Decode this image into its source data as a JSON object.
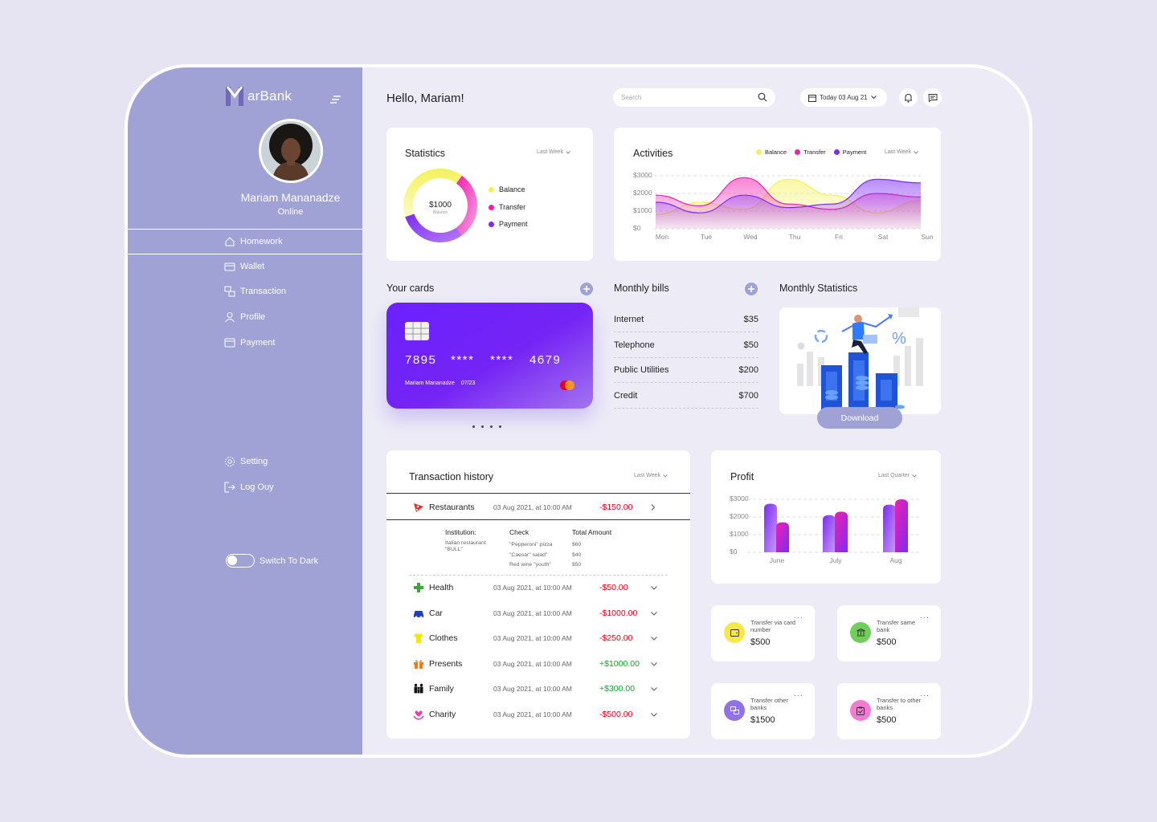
{
  "app": {
    "name": "arBank",
    "greeting": "Hello, Mariam!"
  },
  "user": {
    "name": "Mariam Mananadze",
    "status": "Online"
  },
  "nav": [
    {
      "label": "Homework",
      "icon": "home-icon"
    },
    {
      "label": "Wallet",
      "icon": "wallet-icon"
    },
    {
      "label": "Transaction",
      "icon": "transaction-icon"
    },
    {
      "label": "Profile",
      "icon": "profile-icon"
    },
    {
      "label": "Payment",
      "icon": "payment-icon"
    }
  ],
  "nav_bottom": [
    {
      "label": "Setting",
      "icon": "gear-icon"
    },
    {
      "label": "Log Ouy",
      "icon": "logout-icon"
    }
  ],
  "dark_toggle": {
    "label": "Switch To Dark",
    "on": false
  },
  "header": {
    "search_placeholder": "Search",
    "date_label": "Today 03 Aug 21"
  },
  "statistics": {
    "title": "Statistics",
    "period": "Last Week",
    "center_value": "$1000",
    "center_label": "Balance",
    "legend": [
      "Balance",
      "Transfer",
      "Payment"
    ]
  },
  "activities": {
    "title": "Activities",
    "period": "Last Week",
    "legend": [
      "Balance",
      "Transfer",
      "Payment"
    ]
  },
  "cards": {
    "title": "Your cards",
    "number": [
      "7895",
      "****",
      "****",
      "4679"
    ],
    "holder": "Mariam Mananadze",
    "expiry": "07/23"
  },
  "bills": {
    "title": "Monthly bills",
    "items": [
      {
        "name": "Internet",
        "amount": "$35"
      },
      {
        "name": "Telephone",
        "amount": "$50"
      },
      {
        "name": "Public Utilities",
        "amount": "$200"
      },
      {
        "name": "Credit",
        "amount": "$700"
      }
    ]
  },
  "monthly_stats": {
    "title": "Monthly Statistics",
    "download_label": "Download"
  },
  "history": {
    "title": "Transaction history",
    "period": "Last Week",
    "expanded": {
      "category": "Restaurants",
      "date": "03 Aug 2021, at 10:00 AM",
      "amount": "-$150.00",
      "col1": "Institution:",
      "col2": "Check",
      "col3": "Total Amount",
      "institution": "Italian restaurant \"BULL\"",
      "checks": [
        "\"Pepperoni\" pizza",
        "\"Caesar\" salad\"",
        "Red wine \"youth\""
      ],
      "totals": [
        "$60",
        "$40",
        "$50"
      ]
    },
    "rows": [
      {
        "category": "Health",
        "date": "03 Aug 2021, at 10:00 AM",
        "amount": "-$50.00",
        "sign": "neg",
        "icon": "health-cross-icon"
      },
      {
        "category": "Car",
        "date": "03 Aug 2021, at 10:00 AM",
        "amount": "-$1000.00",
        "sign": "neg",
        "icon": "car-icon"
      },
      {
        "category": "Clothes",
        "date": "03 Aug 2021, at 10:00 AM",
        "amount": "-$250.00",
        "sign": "neg",
        "icon": "shirt-icon"
      },
      {
        "category": "Presents",
        "date": "03 Aug 2021, at 10:00 AM",
        "amount": "+$1000.00",
        "sign": "pos",
        "icon": "gift-icon"
      },
      {
        "category": "Family",
        "date": "03 Aug 2021, at 10:00 AM",
        "amount": "+$300.00",
        "sign": "pos",
        "icon": "family-icon"
      },
      {
        "category": "Charity",
        "date": "03 Aug 2021, at 10:00 AM",
        "amount": "-$500.00",
        "sign": "neg",
        "icon": "charity-icon"
      }
    ]
  },
  "profit": {
    "title": "Profit",
    "period": "Last Quarter"
  },
  "transfers": [
    {
      "label": "Transfer via card number",
      "amount": "$500",
      "color": "#f7e84a",
      "icon": "wallet-icon"
    },
    {
      "label": "Transfer same bank",
      "amount": "$500",
      "color": "#6fcf5a",
      "icon": "bank-icon"
    },
    {
      "label": "Transfer other banks",
      "amount": "$1500",
      "color": "#8f73e6",
      "icon": "transfer-icon"
    },
    {
      "label": "Transfer to other banks",
      "amount": "$500",
      "color": "#f57ad2",
      "icon": "clipboard-icon"
    }
  ],
  "colors": {
    "balance": "#f3f25a",
    "transfer": "#f01fb0",
    "payment": "#7d2cf3",
    "sidebar": "#a0a1d5"
  },
  "chart_data": [
    {
      "type": "pie",
      "title": "Statistics",
      "series": [
        {
          "name": "Balance",
          "value": 40
        },
        {
          "name": "Transfer",
          "value": 30
        },
        {
          "name": "Payment",
          "value": 30
        }
      ],
      "center": "$1000"
    },
    {
      "type": "area",
      "title": "Activities",
      "categories": [
        "Mon",
        "Tue",
        "Wed",
        "Thu",
        "Fri",
        "Sat",
        "Sun"
      ],
      "ylim": [
        0,
        3000
      ],
      "yticks": [
        "$3000",
        "$2000",
        "$1000",
        "$0"
      ],
      "series": [
        {
          "name": "Balance",
          "values": [
            800,
            1500,
            1100,
            2800,
            1900,
            900,
            1600
          ]
        },
        {
          "name": "Transfer",
          "values": [
            1900,
            1300,
            2900,
            1400,
            1100,
            2000,
            1800
          ]
        },
        {
          "name": "Payment",
          "values": [
            1500,
            900,
            1900,
            1200,
            1400,
            2800,
            2600
          ]
        }
      ]
    },
    {
      "type": "bar",
      "title": "Profit",
      "categories": [
        "June",
        "July",
        "Aug"
      ],
      "ylim": [
        0,
        3000
      ],
      "yticks": [
        "$3000",
        "$2000",
        "$1000",
        "$0"
      ],
      "series": [
        {
          "name": "Payment",
          "values": [
            2750,
            2100,
            2700
          ]
        },
        {
          "name": "Transfer",
          "values": [
            1700,
            2300,
            3000
          ]
        }
      ]
    }
  ]
}
